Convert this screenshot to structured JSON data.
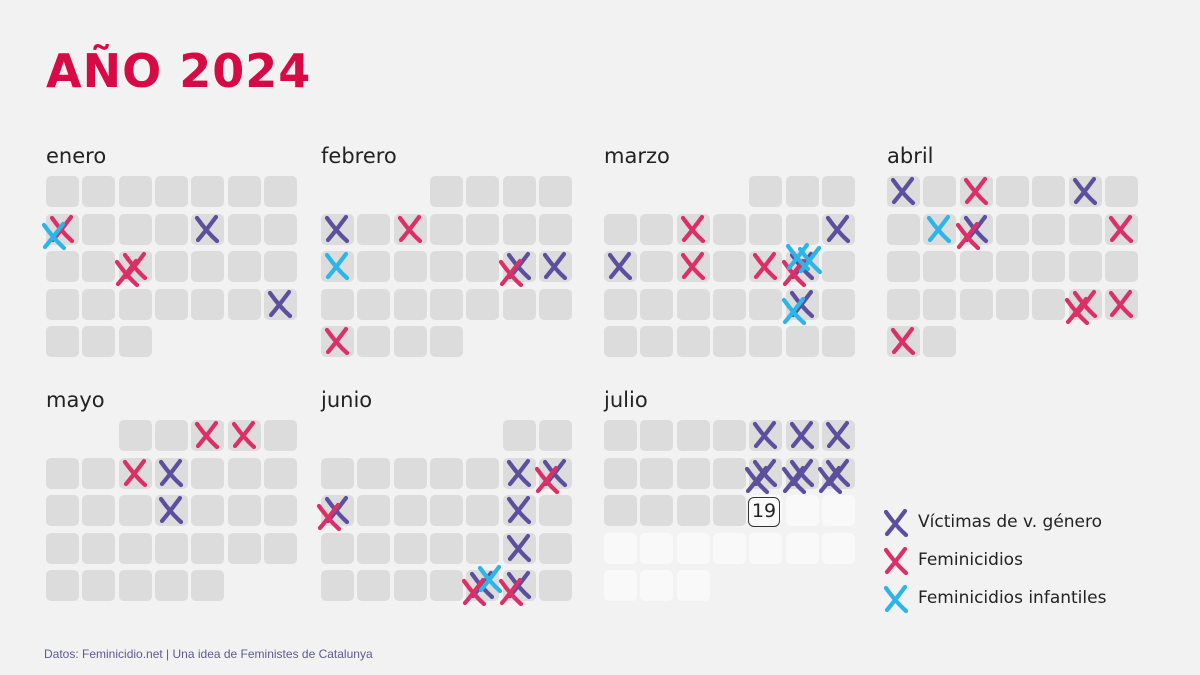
{
  "title": "AÑO 2024",
  "source": "Datos: Feminicidio.net | Una idea de Feministes de Catalunya",
  "current_day": "19",
  "colors": {
    "victimas": "#5b4f9e",
    "feminicidios": "#dc2f67",
    "infantiles": "#2cb5e8",
    "cell": "#dcdcdc",
    "future": "#f9f9f9",
    "title": "#d70a45"
  },
  "legend": [
    {
      "key": "victimas",
      "label": "Víctimas de v. género"
    },
    {
      "key": "feminicidios",
      "label": "Feminicidios"
    },
    {
      "key": "infantiles",
      "label": "Feminicidios infantiles"
    }
  ],
  "chart_data": {
    "type": "table",
    "year": 2024,
    "months": [
      {
        "name": "enero",
        "days": 31,
        "victimas": [
          12,
          28
        ],
        "feminicidios": [
          8,
          17,
          17
        ],
        "infantiles": [
          8
        ]
      },
      {
        "name": "febrero",
        "days": 29,
        "victimas": [
          5,
          17,
          18
        ],
        "feminicidios": [
          7,
          17,
          26
        ],
        "infantiles": [
          12
        ]
      },
      {
        "name": "marzo",
        "days": 31,
        "victimas": [
          10,
          11,
          16,
          23
        ],
        "feminicidios": [
          6,
          13,
          15,
          16
        ],
        "infantiles": [
          16,
          16,
          23
        ]
      },
      {
        "name": "abril",
        "days": 30,
        "victimas": [
          1,
          6,
          10
        ],
        "feminicidios": [
          3,
          10,
          14,
          27,
          27,
          28,
          29
        ],
        "infantiles": [
          9
        ]
      },
      {
        "name": "mayo",
        "days": 31,
        "victimas": [
          9,
          16
        ],
        "feminicidios": [
          3,
          4,
          8
        ],
        "infantiles": []
      },
      {
        "name": "junio",
        "days": 30,
        "victimas": [
          8,
          9,
          10,
          15,
          22,
          28,
          29
        ],
        "feminicidios": [
          9,
          10,
          28,
          29
        ],
        "infantiles": [
          28
        ]
      },
      {
        "name": "julio",
        "days": 31,
        "victimas": [
          5,
          6,
          7,
          12,
          12,
          13,
          13,
          14,
          14
        ],
        "feminicidios": [],
        "infantiles": [],
        "current_day": 19
      }
    ]
  }
}
